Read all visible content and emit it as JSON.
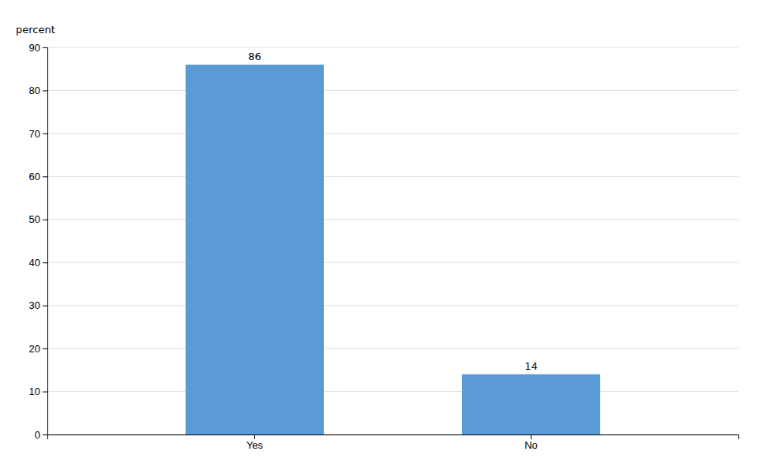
{
  "chart_data": {
    "type": "bar",
    "ylabel": "percent",
    "categories": [
      "Yes",
      "No"
    ],
    "values": [
      86,
      14
    ],
    "color": "#5B9BD5",
    "ylim": [
      0,
      90
    ],
    "yticks": [
      0,
      10,
      20,
      30,
      40,
      50,
      60,
      70,
      80,
      90
    ],
    "grid": true,
    "data_labels": true
  }
}
